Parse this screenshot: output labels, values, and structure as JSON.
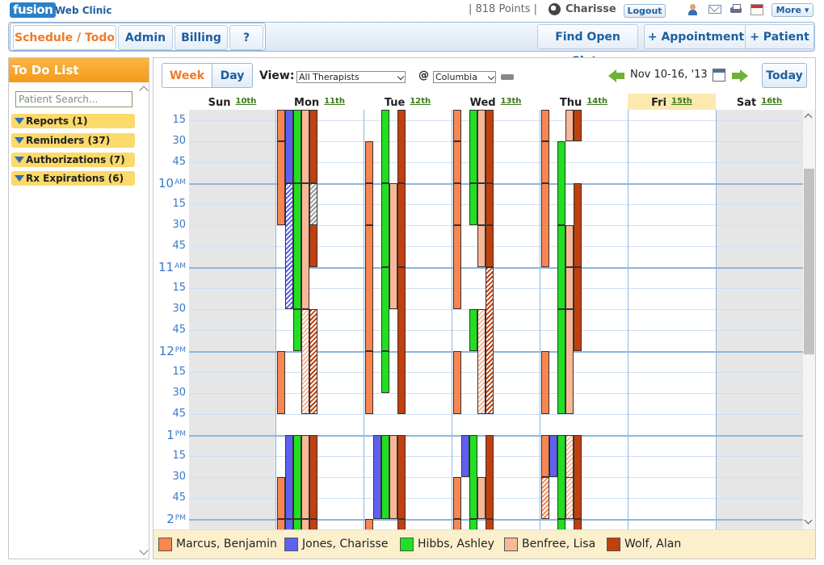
{
  "app": {
    "logo": "fusion",
    "name": "Web Clinic",
    "points": "| 818 Points |",
    "user": "Charisse",
    "logout": "Logout",
    "more": "More ▾"
  },
  "nav": {
    "tabs": [
      "Schedule / Todo",
      "Admin",
      "Billing",
      "?"
    ],
    "find_open_slots": "Find Open Slots",
    "add_appointment": "+ Appointment",
    "add_patient": "+ Patient"
  },
  "todo": {
    "title": "To Do List",
    "search_placeholder": "Patient Search...",
    "items": [
      "Reports (1)",
      "Reminders (37)",
      "Authorizations (7)",
      "Rx Expirations (6)"
    ]
  },
  "calendar": {
    "week_btn": "Week",
    "day_btn": "Day",
    "view_label": "View:",
    "therapist_select": "All Therapists",
    "at_label": "@",
    "location_select": "Columbia",
    "range": "Nov 10-16, '13",
    "today_btn": "Today",
    "days": [
      {
        "name": "Sun",
        "date": "10th"
      },
      {
        "name": "Mon",
        "date": "11th"
      },
      {
        "name": "Tue",
        "date": "12th"
      },
      {
        "name": "Wed",
        "date": "13th"
      },
      {
        "name": "Thu",
        "date": "14th"
      },
      {
        "name": "Fri",
        "date": "15th"
      },
      {
        "name": "Sat",
        "date": "16th"
      }
    ],
    "time_labels": [
      {
        "text": "15"
      },
      {
        "text": "30"
      },
      {
        "text": "45"
      },
      {
        "text": "10",
        "ampm": "AM",
        "hour": true
      },
      {
        "text": "15"
      },
      {
        "text": "30"
      },
      {
        "text": "45"
      },
      {
        "text": "11",
        "ampm": "AM",
        "hour": true
      },
      {
        "text": "15"
      },
      {
        "text": "30"
      },
      {
        "text": "45"
      },
      {
        "text": "12",
        "ampm": "PM",
        "hour": true
      },
      {
        "text": "15"
      },
      {
        "text": "30"
      },
      {
        "text": "45"
      },
      {
        "text": "1",
        "ampm": "PM",
        "hour": true
      },
      {
        "text": "15"
      },
      {
        "text": "30"
      },
      {
        "text": "45"
      },
      {
        "text": "2",
        "ampm": "PM",
        "hour": true
      }
    ]
  },
  "therapists": [
    {
      "name": "Marcus, Benjamin",
      "color": "#f88650"
    },
    {
      "name": "Jones, Charisse",
      "color": "#6060f0"
    },
    {
      "name": "Hibbs, Ashley",
      "color": "#20e020"
    },
    {
      "name": "Benfree, Lisa",
      "color": "#f8b898"
    },
    {
      "name": "Wolf, Alan",
      "color": "#c04010"
    }
  ]
}
